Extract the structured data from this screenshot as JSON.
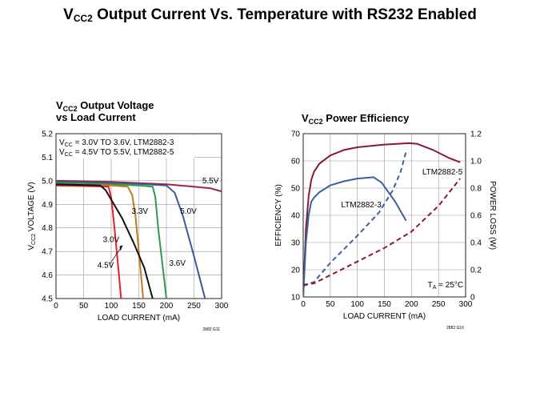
{
  "slide": {
    "title_v": "V",
    "title_sub": "CC2",
    "title_rest": " Output Current Vs. Temperature with RS232 Enabled"
  },
  "chart_data": [
    {
      "type": "line",
      "title_v": "V",
      "title_sub": "CC2",
      "title_rest": " Output Voltage",
      "title_line2": "vs Load Current",
      "xlabel": "LOAD CURRENT (mA)",
      "ylabel_pre": "V",
      "ylabel_sub": "CC2",
      "ylabel_post": " VOLTAGE (V)",
      "xlim": [
        0,
        300
      ],
      "ylim": [
        4.5,
        5.2
      ],
      "xticks": [
        0,
        50,
        100,
        150,
        200,
        250,
        300
      ],
      "yticks": [
        4.5,
        4.6,
        4.7,
        4.8,
        4.9,
        5.0,
        5.1,
        5.2
      ],
      "grid": true,
      "legend_lines": [
        {
          "pre": "V",
          "sub": "CC",
          "post": " = 3.0V TO 3.6V, LTM2882-3"
        },
        {
          "pre": "V",
          "sub": "CC",
          "post": " = 4.5V TO 5.5V, LTM2882-5"
        }
      ],
      "figure_id": "2882 G11",
      "series": [
        {
          "name": "5.5V",
          "color": "#a0223c",
          "x": [
            0,
            50,
            100,
            150,
            200,
            250,
            280,
            300
          ],
          "y": [
            5.0,
            4.998,
            4.995,
            4.99,
            4.985,
            4.975,
            4.968,
            4.955
          ]
        },
        {
          "name": "5.0V",
          "color": "#3b5a9a",
          "x": [
            0,
            100,
            150,
            200,
            215,
            230,
            250,
            270
          ],
          "y": [
            4.995,
            4.99,
            4.987,
            4.98,
            4.95,
            4.85,
            4.68,
            4.5
          ]
        },
        {
          "name": "3.6V",
          "color": "#2e9a4a",
          "x": [
            0,
            100,
            150,
            175,
            180,
            185,
            195,
            200
          ],
          "y": [
            4.99,
            4.985,
            4.98,
            4.975,
            4.93,
            4.8,
            4.6,
            4.5
          ]
        },
        {
          "name": "3.3V",
          "color": "#c07a22",
          "x": [
            0,
            100,
            130,
            138,
            144,
            152,
            158
          ],
          "y": [
            4.985,
            4.98,
            4.975,
            4.94,
            4.85,
            4.65,
            4.5
          ]
        },
        {
          "name": "3.0V",
          "color": "#e8202a",
          "x": [
            0,
            95,
            100,
            106,
            112,
            118
          ],
          "y": [
            4.98,
            4.975,
            4.93,
            4.8,
            4.65,
            4.5
          ]
        },
        {
          "name": "4.5V",
          "color": "#111111",
          "x": [
            0,
            80,
            90,
            100,
            120,
            140,
            160,
            175
          ],
          "y": [
            4.985,
            4.98,
            4.96,
            4.92,
            4.84,
            4.74,
            4.63,
            4.5
          ]
        }
      ],
      "annotations": [
        {
          "text": "5.5V",
          "x": 265,
          "y": 4.99
        },
        {
          "text": "5.0V",
          "x": 225,
          "y": 4.86
        },
        {
          "text": "3.6V",
          "x": 205,
          "y": 4.64
        },
        {
          "text": "3.3V",
          "x": 137,
          "y": 4.86
        },
        {
          "text": "3.0V",
          "x": 85,
          "y": 4.74
        },
        {
          "text": "4.5V",
          "x": 75,
          "y": 4.63
        }
      ]
    },
    {
      "type": "line",
      "title_v": "V",
      "title_sub": "CC2",
      "title_rest": " Power Efficiency",
      "xlabel": "LOAD CURRENT (mA)",
      "ylabel": "EFFICIENCY (%)",
      "ylabel_right": "POWER LOSS (W)",
      "xlim": [
        0,
        300
      ],
      "ylim": [
        10,
        70
      ],
      "ylim_right": [
        0,
        1.2
      ],
      "xticks": [
        0,
        50,
        100,
        150,
        200,
        250,
        300
      ],
      "yticks": [
        10,
        20,
        30,
        40,
        50,
        60,
        70
      ],
      "yticks_right": [
        "0",
        "0.2",
        "0.4",
        "0.6",
        "0.8",
        "1.0",
        "1.2"
      ],
      "grid": true,
      "temp_pre": "T",
      "temp_sub": "A",
      "temp_post": " = 25°C",
      "figure_id": "2882 G16",
      "series": [
        {
          "name": "LTM2882-5",
          "axis": "left",
          "style": "solid",
          "color": "#8b1a2e",
          "x": [
            0,
            5,
            10,
            15,
            20,
            30,
            50,
            75,
            100,
            150,
            195,
            210,
            240,
            270,
            290
          ],
          "y": [
            10,
            35,
            47,
            53,
            56,
            59,
            62,
            64,
            65,
            66,
            66.5,
            66.3,
            64,
            61,
            59.5
          ]
        },
        {
          "name": "LTM2882-3",
          "axis": "left",
          "style": "solid",
          "color": "#3b5fa0",
          "x": [
            0,
            5,
            10,
            15,
            20,
            30,
            50,
            75,
            100,
            130,
            145,
            170,
            190
          ],
          "y": [
            10,
            30,
            40,
            45,
            46.5,
            48.5,
            51,
            52.5,
            53.5,
            54,
            52,
            45,
            38
          ]
        },
        {
          "name": "LTM2882-3 power loss",
          "axis": "right",
          "style": "dashed",
          "color": "#3b5fa0",
          "x": [
            0,
            20,
            50,
            100,
            140,
            165,
            180,
            190
          ],
          "y": [
            0.08,
            0.11,
            0.25,
            0.45,
            0.62,
            0.78,
            0.92,
            1.07
          ]
        },
        {
          "name": "LTM2882-5 power loss",
          "axis": "right",
          "style": "dashed",
          "color": "#8b1a2e",
          "x": [
            0,
            20,
            50,
            100,
            150,
            200,
            250,
            290
          ],
          "y": [
            0.09,
            0.1,
            0.16,
            0.26,
            0.36,
            0.48,
            0.67,
            0.87
          ]
        }
      ],
      "annotations": [
        {
          "text": "LTM2882-5",
          "x": 220,
          "y": 55
        },
        {
          "text": "LTM2882-3",
          "x": 70,
          "y": 43
        }
      ]
    }
  ]
}
